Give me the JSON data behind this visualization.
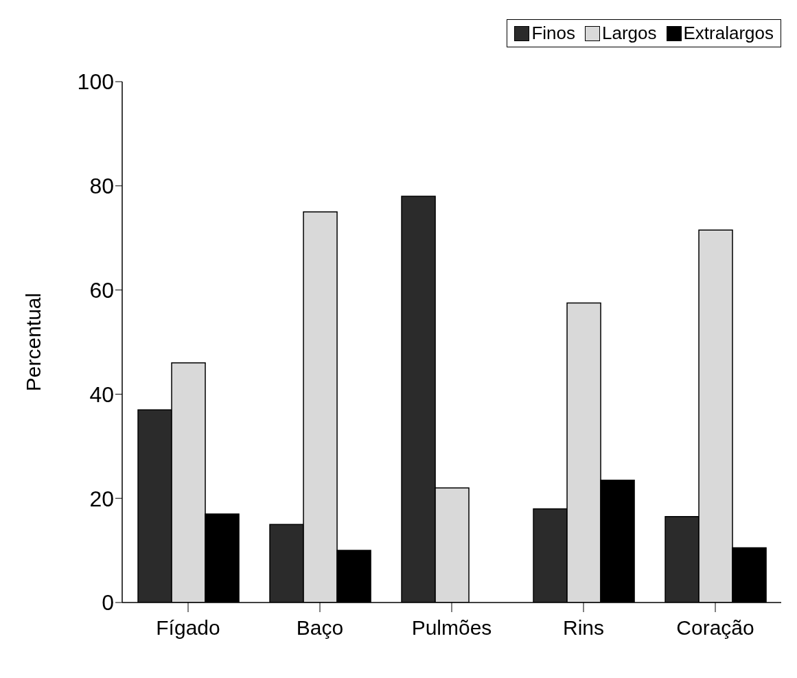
{
  "chart_data": {
    "type": "bar",
    "ylabel": "Percentual",
    "categories": [
      "Fígado",
      "Baço",
      "Pulmões",
      "Rins",
      "Coração"
    ],
    "series": [
      {
        "name": "Finos",
        "color": "#2b2b2b",
        "values": [
          37,
          15,
          78,
          18,
          16.5
        ]
      },
      {
        "name": "Largos",
        "color": "#d9d9d9",
        "values": [
          46,
          75,
          22,
          57.5,
          71.5
        ]
      },
      {
        "name": "Extralargos",
        "color": "#000000",
        "values": [
          17,
          10,
          null,
          23.5,
          10.5
        ]
      }
    ],
    "ylim": [
      0,
      100
    ],
    "yticks": [
      0,
      20,
      40,
      60,
      80,
      100
    ],
    "grid": false,
    "legend": "top right"
  }
}
